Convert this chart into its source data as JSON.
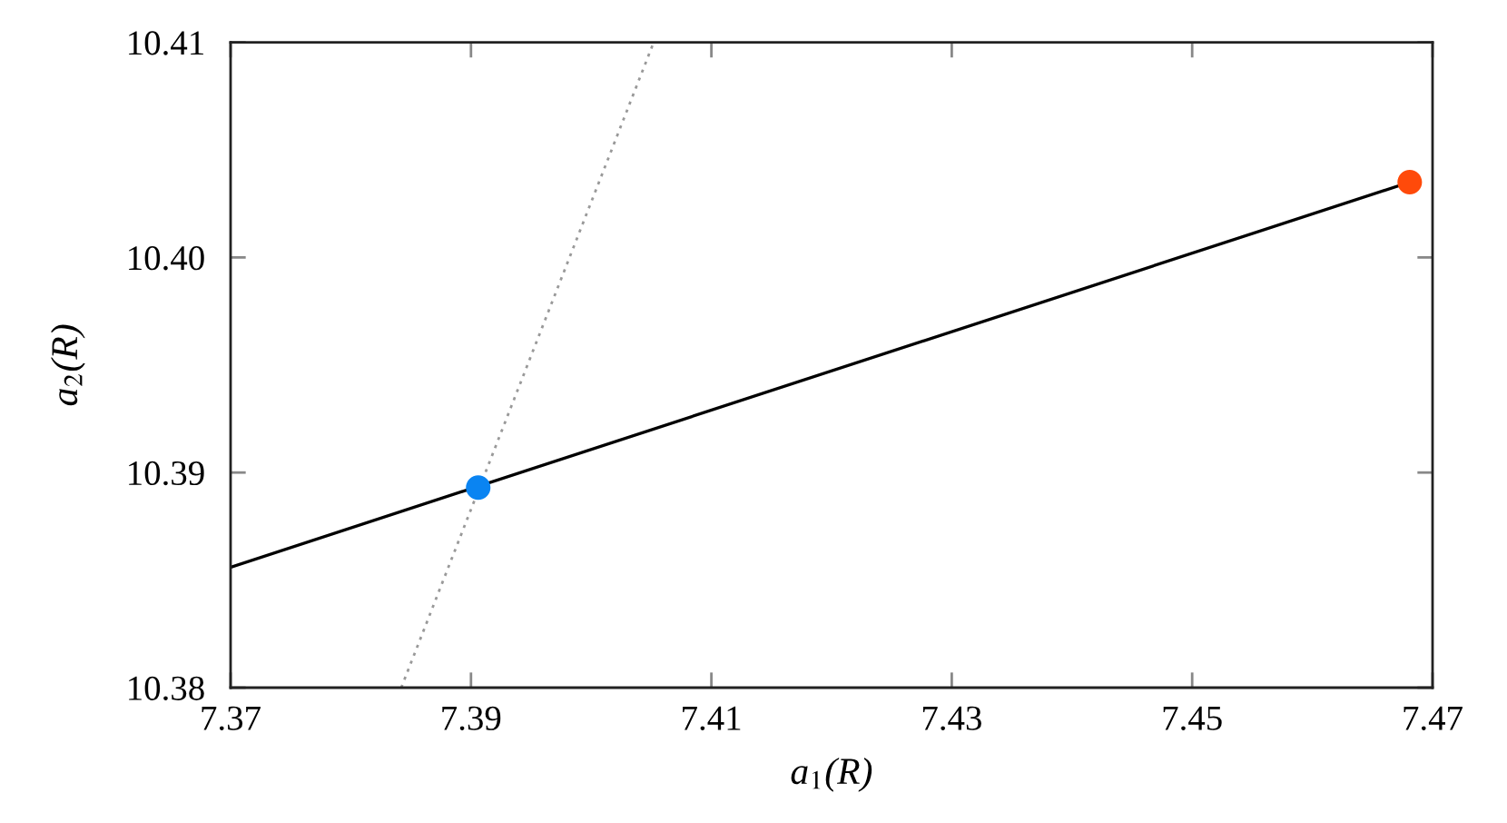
{
  "chart_data": {
    "type": "line",
    "xlabel": "a$_{1}$(R)",
    "ylabel": "a$_{2}$(R)",
    "xlim": [
      7.37,
      7.47
    ],
    "xticks": [
      7.37,
      7.39,
      7.41,
      7.43,
      7.45,
      7.47
    ],
    "ylim": [
      10.38,
      10.41
    ],
    "yticks": [
      10.38,
      10.39,
      {
        "value": 10.4,
        "label": "10.40"
      },
      10.41
    ],
    "series": [
      {
        "color": "#000000",
        "line_style": "solid",
        "marker": "none",
        "x": [
          7.37,
          7.4681
        ],
        "values": [
          10.3856,
          10.4035
        ]
      },
      {
        "color": "#999999",
        "line_style": "dotted",
        "marker": "none",
        "x": [
          7.3842,
          7.4052
        ],
        "values": [
          10.38,
          10.41
        ]
      },
      {
        "type": "scatter",
        "color": "#0a84f2",
        "marker": "circle",
        "x": [
          7.3906
        ],
        "values": [
          10.3893
        ]
      },
      {
        "type": "scatter",
        "color": "#ff4a0a",
        "marker": "circle",
        "x": [
          7.4681
        ],
        "values": [
          10.4035
        ]
      }
    ]
  }
}
